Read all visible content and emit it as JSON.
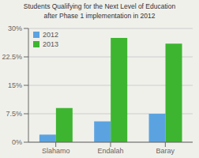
{
  "chart_data": {
    "type": "bar",
    "title": "Students Qualifying for the Next Level of Education",
    "subtitle": "after Phase 1 implementation in 2012",
    "categories": [
      "Slahamo",
      "Endalah",
      "Baray"
    ],
    "series": [
      {
        "name": "2012",
        "color": "#5ba3e0",
        "values": [
          2.0,
          5.5,
          7.5
        ]
      },
      {
        "name": "2013",
        "color": "#3db530",
        "values": [
          9.0,
          27.5,
          26.0
        ]
      }
    ],
    "ylim": [
      0,
      30
    ],
    "yticks": [
      {
        "value": 0,
        "label": "0%"
      },
      {
        "value": 7.5,
        "label": "7.5%"
      },
      {
        "value": 15,
        "label": "15%"
      },
      {
        "value": 22.5,
        "label": "22.5%"
      },
      {
        "value": 30,
        "label": "30%"
      }
    ],
    "grid": true,
    "legend": "upper left"
  }
}
